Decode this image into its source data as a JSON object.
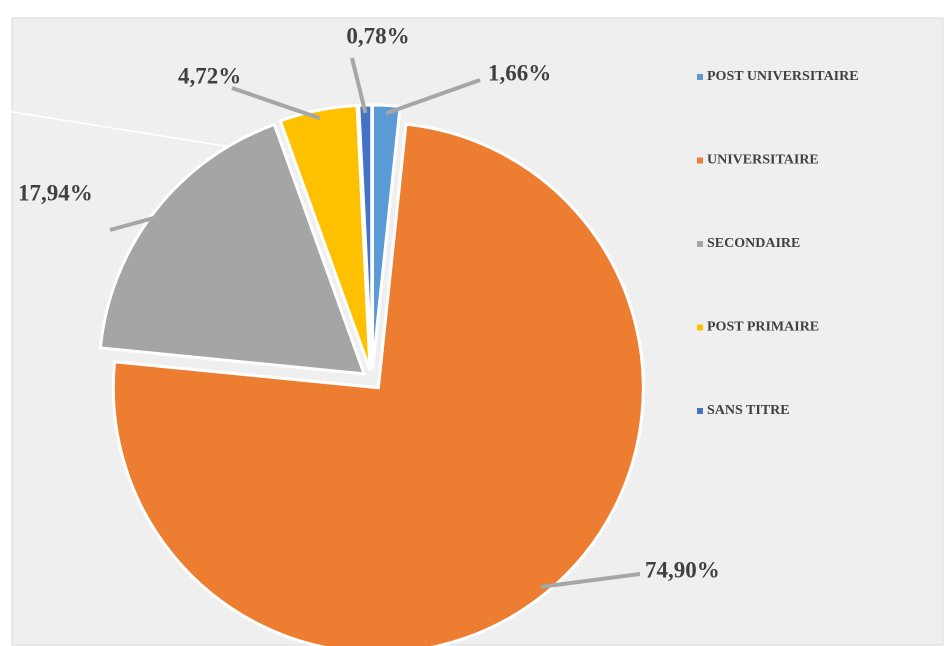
{
  "chart_data": {
    "type": "pie",
    "categories": [
      "POST UNIVERSITAIRE",
      "UNIVERSITAIRE",
      "SECONDAIRE",
      "POST PRIMAIRE",
      "SANS TITRE"
    ],
    "values": [
      1.66,
      74.9,
      17.94,
      4.72,
      0.78
    ],
    "value_labels": [
      "1,66%",
      "74,90%",
      "17,94%",
      "4,72%",
      "0,78%"
    ],
    "colors": [
      "#5b9bd5",
      "#ed7d31",
      "#a5a5a5",
      "#ffc000",
      "#4472c4"
    ],
    "legend": "right"
  }
}
